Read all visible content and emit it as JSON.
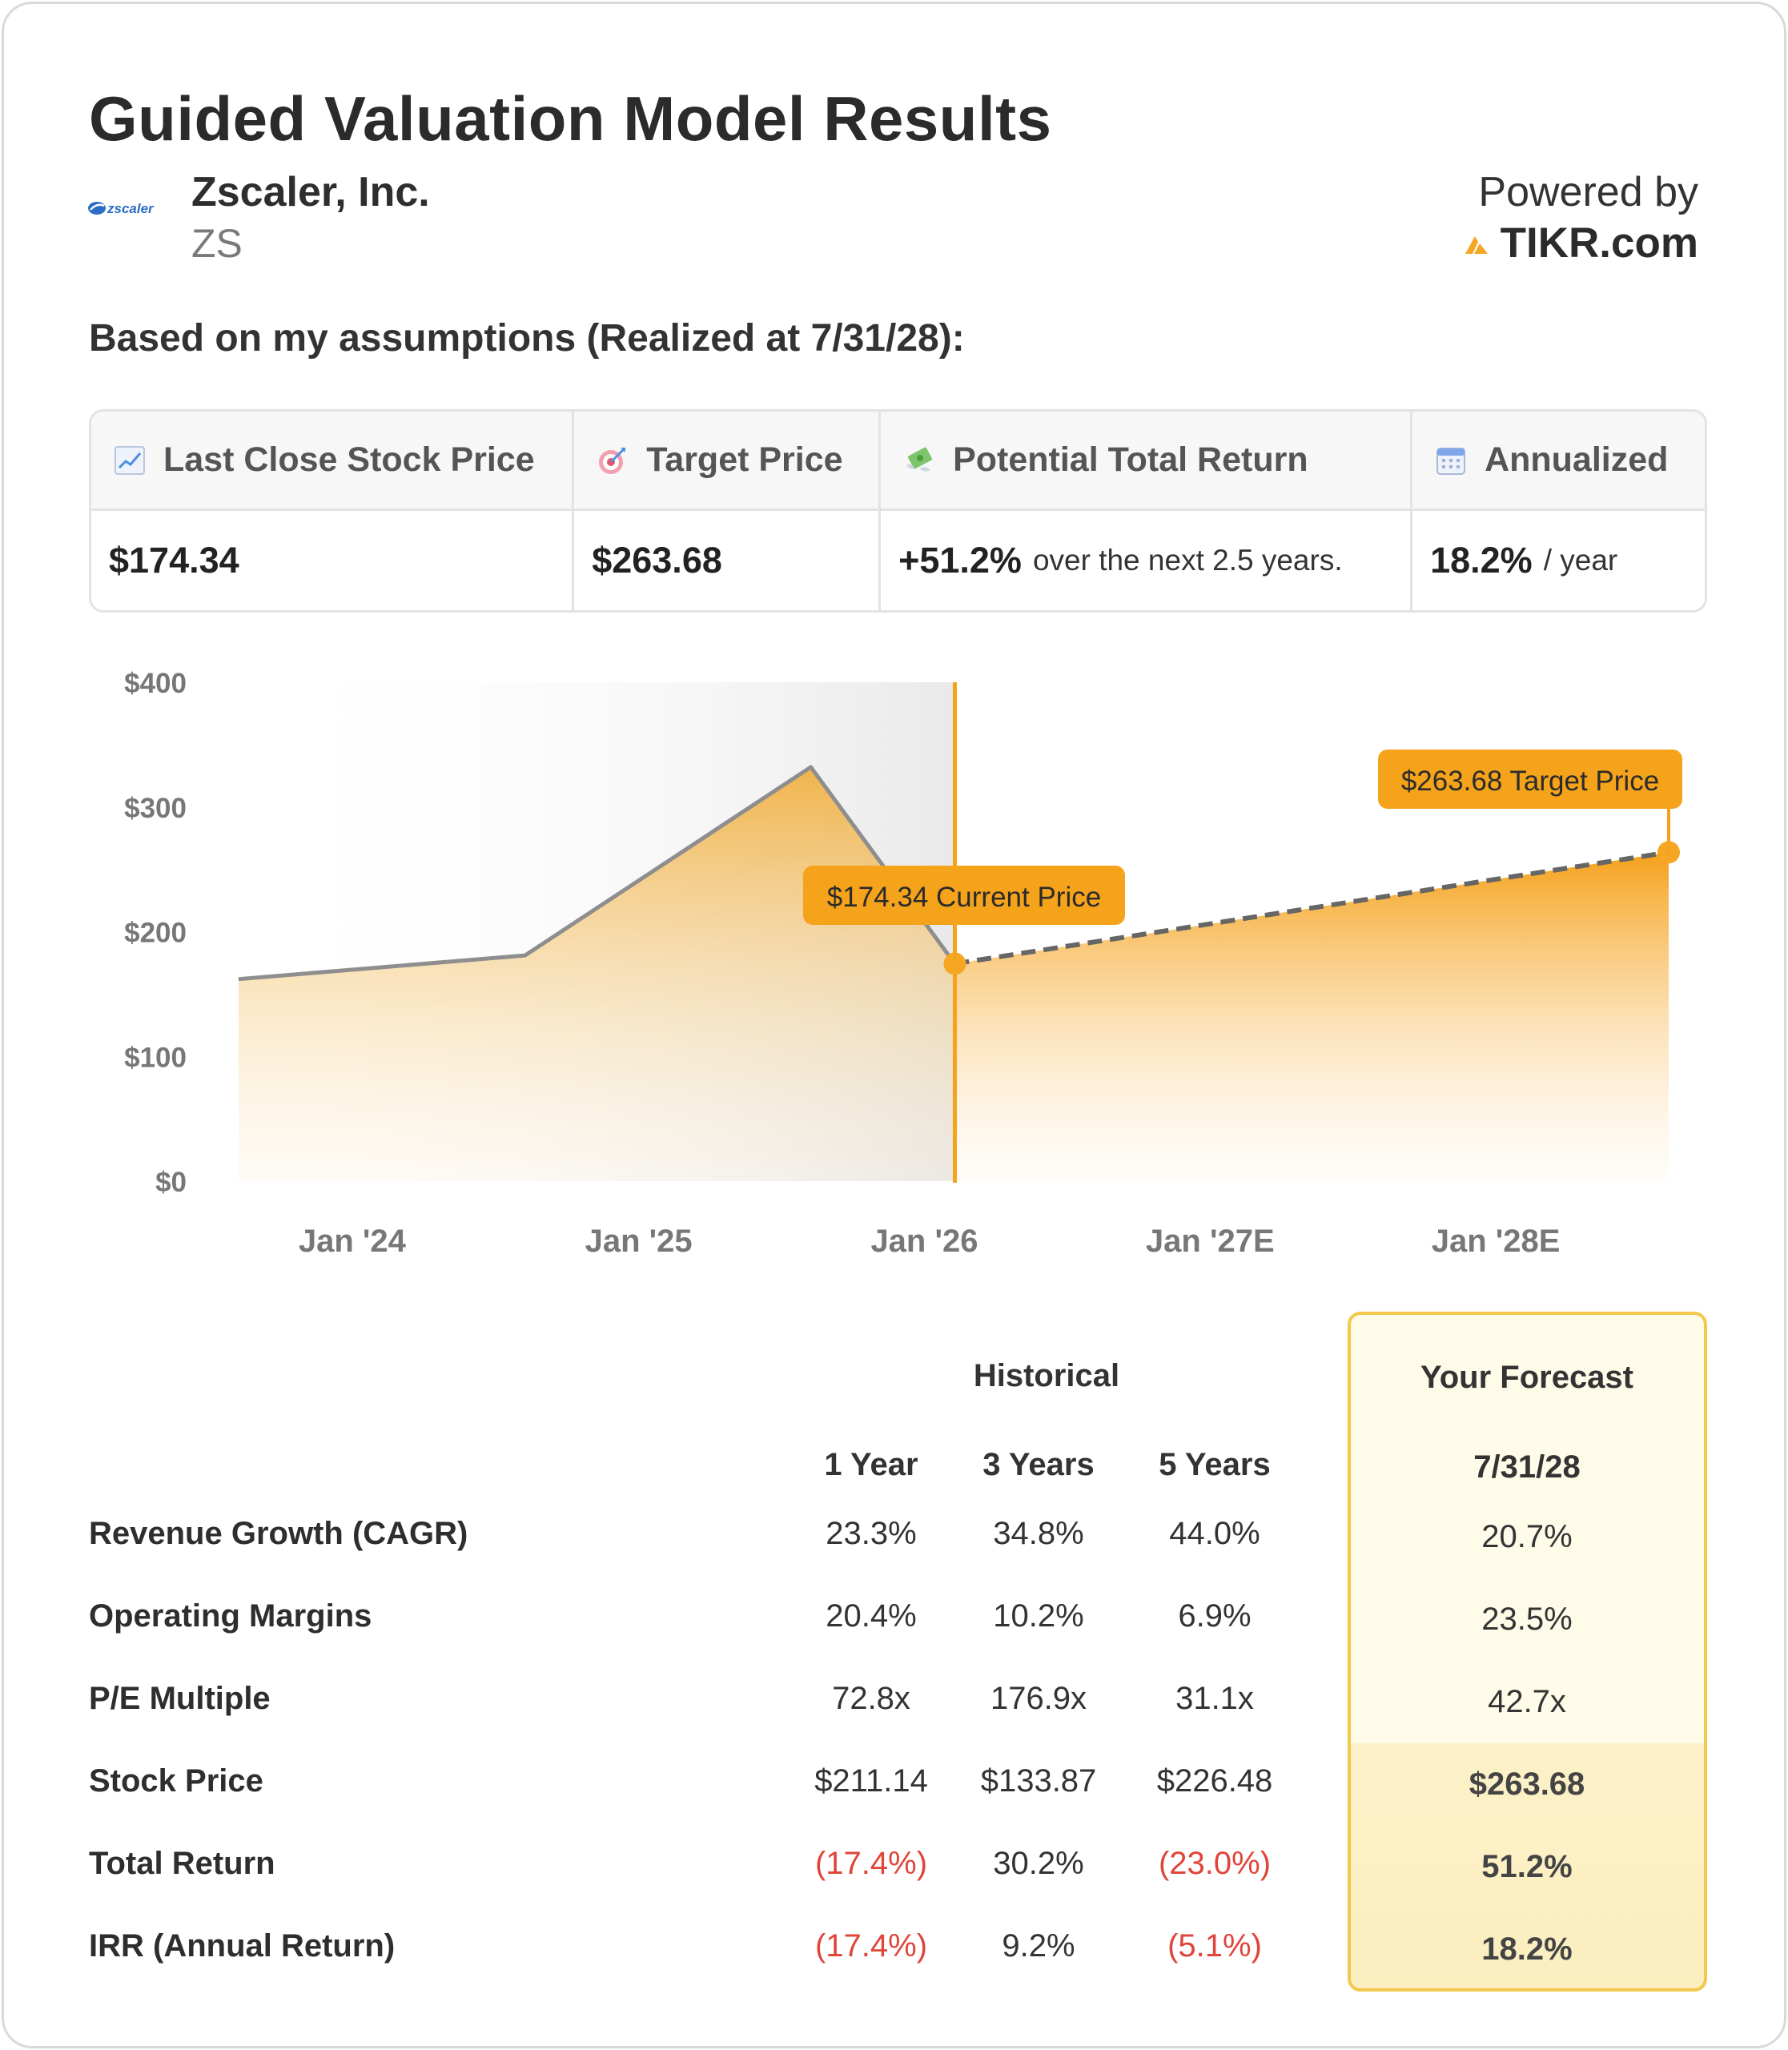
{
  "header": {
    "title": "Guided Valuation Model Results",
    "company_name": "Zscaler, Inc.",
    "ticker": "ZS",
    "logo_text": "zscaler",
    "powered_label": "Powered by",
    "powered_brand": "TIKR.com"
  },
  "assumption_text": "Based on my assumptions (Realized at 7/31/28):",
  "metrics": [
    {
      "label": "Last Close Stock Price",
      "icon": "chart-increasing-icon",
      "value": "$174.34",
      "sub": ""
    },
    {
      "label": "Target Price",
      "icon": "target-icon",
      "value": "$263.68",
      "sub": ""
    },
    {
      "label": "Potential Total Return",
      "icon": "money-with-wings-icon",
      "value": "+51.2%",
      "sub": "over the next 2.5 years."
    },
    {
      "label": "Annualized",
      "icon": "calendar-icon",
      "value": "18.2%",
      "sub": "/ year"
    }
  ],
  "chart_data": {
    "type": "area",
    "y_ticks": [
      "$400",
      "$300",
      "$200",
      "$100",
      "$0"
    ],
    "x_ticks": [
      "Jan '24",
      "Jan '25",
      "Jan '26",
      "Jan '27E",
      "Jan '28E"
    ],
    "ylim": [
      0,
      400
    ],
    "historical": {
      "x": [
        "2023-07-31",
        "2024-07-31",
        "2025-07-31",
        "2026-01-31"
      ],
      "y": [
        162,
        181,
        332,
        174.34
      ]
    },
    "forecast": {
      "x": [
        "2026-01-31",
        "2028-07-31"
      ],
      "y": [
        174.34,
        263.68
      ]
    },
    "annotations": [
      {
        "label": "$174.34 Current Price",
        "value": 174.34
      },
      {
        "label": "$263.68 Target Price",
        "value": 263.68
      }
    ],
    "colors": {
      "historical_line": "#8e8e8e",
      "forecast_fill": "#f5a623",
      "divider": "#f5a31a",
      "shade": "#ececec"
    }
  },
  "table": {
    "historical_label": "Historical",
    "forecast_label": "Your Forecast",
    "columns": [
      "1 Year",
      "3 Years",
      "5 Years"
    ],
    "forecast_date": "7/31/28",
    "rows": [
      {
        "label": "Revenue Growth (CAGR)",
        "values": [
          "23.3%",
          "34.8%",
          "44.0%"
        ],
        "forecast": "20.7%"
      },
      {
        "label": "Operating Margins",
        "values": [
          "20.4%",
          "10.2%",
          "6.9%"
        ],
        "forecast": "23.5%"
      },
      {
        "label": "P/E Multiple",
        "values": [
          "72.8x",
          "176.9x",
          "31.1x"
        ],
        "forecast": "42.7x"
      },
      {
        "label": "Stock Price",
        "values": [
          "$211.14",
          "$133.87",
          "$226.48"
        ],
        "forecast": "$263.68"
      },
      {
        "label": "Total Return",
        "values": [
          "(17.4%)",
          "30.2%",
          "(23.0%)"
        ],
        "forecast": "51.2%"
      },
      {
        "label": "IRR (Annual Return)",
        "values": [
          "(17.4%)",
          "9.2%",
          "(5.1%)"
        ],
        "forecast": "18.2%"
      }
    ]
  }
}
